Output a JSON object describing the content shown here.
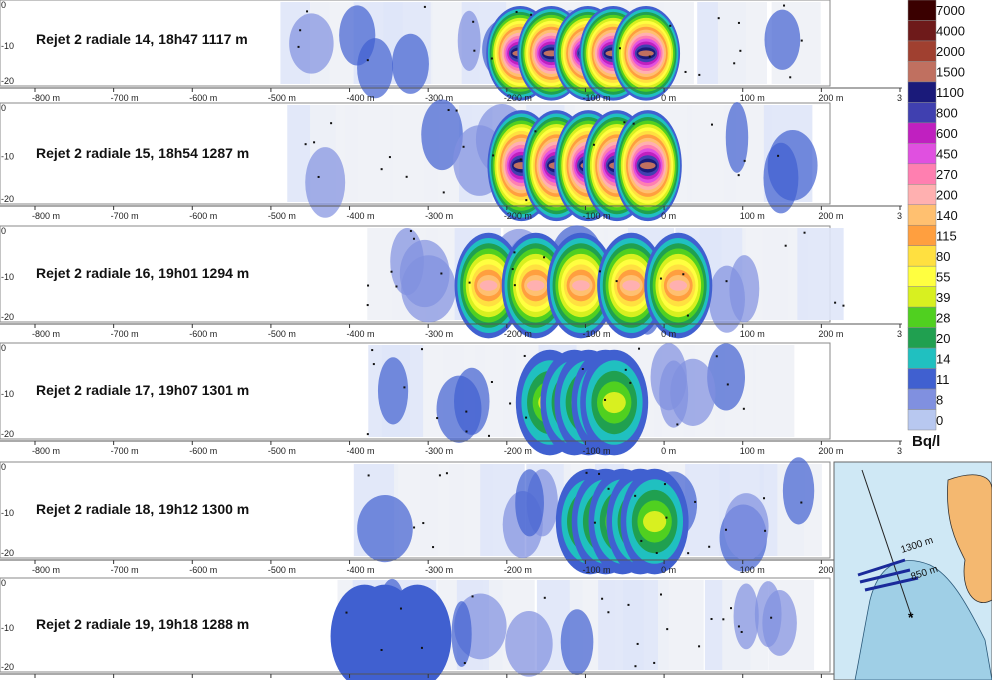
{
  "chart_data": {
    "type": "heatmap",
    "unit": "Bq/l",
    "x_ticks": [
      "-800 m",
      "-700 m",
      "-600 m",
      "-500 m",
      "-400 m",
      "-300 m",
      "-200 m",
      "-100 m",
      "0 m",
      "100 m",
      "200 m",
      "3"
    ],
    "y_ticks": [
      "0",
      "-10",
      "-20"
    ],
    "legend": {
      "levels": [
        "7000",
        "4000",
        "2000",
        "1500",
        "1100",
        "800",
        "600",
        "450",
        "270",
        "200",
        "140",
        "115",
        "80",
        "55",
        "39",
        "28",
        "20",
        "14",
        "11",
        "8",
        "0"
      ],
      "colors": [
        "#3a0000",
        "#6e1a1a",
        "#a04030",
        "#c07060",
        "#1a1a7a",
        "#4040b0",
        "#c020c0",
        "#e050e0",
        "#ff7fb0",
        "#ffb0b0",
        "#ffc070",
        "#ff9f3f",
        "#ffe040",
        "#ffff40",
        "#d8f020",
        "#50d020",
        "#20a050",
        "#20c0c0",
        "#4060d0",
        "#8090e0",
        "#b8c8f0"
      ]
    },
    "panels": [
      {
        "label": "Rejet 2 radiale 14, 18h47  1117 m",
        "x_extent": [
          -480,
          180
        ],
        "intensity": "very high",
        "peak_x": [
          -200,
          0
        ]
      },
      {
        "label": "Rejet 2 radiale 15, 18h54  1287 m",
        "x_extent": [
          -480,
          170
        ],
        "intensity": "very high",
        "peak_x": [
          -200,
          0
        ]
      },
      {
        "label": "Rejet 2 radiale 16, 19h01  1294 m",
        "x_extent": [
          -380,
          230
        ],
        "intensity": "high",
        "peak_x": [
          -250,
          50
        ]
      },
      {
        "label": "Rejet 2 radiale 17, 19h07  1301 m",
        "x_extent": [
          -380,
          150
        ],
        "intensity": "medium",
        "peak_x": [
          -150,
          -50
        ]
      },
      {
        "label": "Rejet 2 radiale 18, 19h12  1300 m",
        "x_extent": [
          -380,
          200
        ],
        "intensity": "medium",
        "peak_x": [
          -100,
          0
        ]
      },
      {
        "label": "Rejet 2 radiale 19, 19h18  1288 m",
        "x_extent": [
          -420,
          180
        ],
        "intensity": "low",
        "peak_x": [
          -400,
          -300
        ]
      }
    ]
  },
  "map": {
    "labels": [
      "1300 m",
      "850 m"
    ]
  }
}
